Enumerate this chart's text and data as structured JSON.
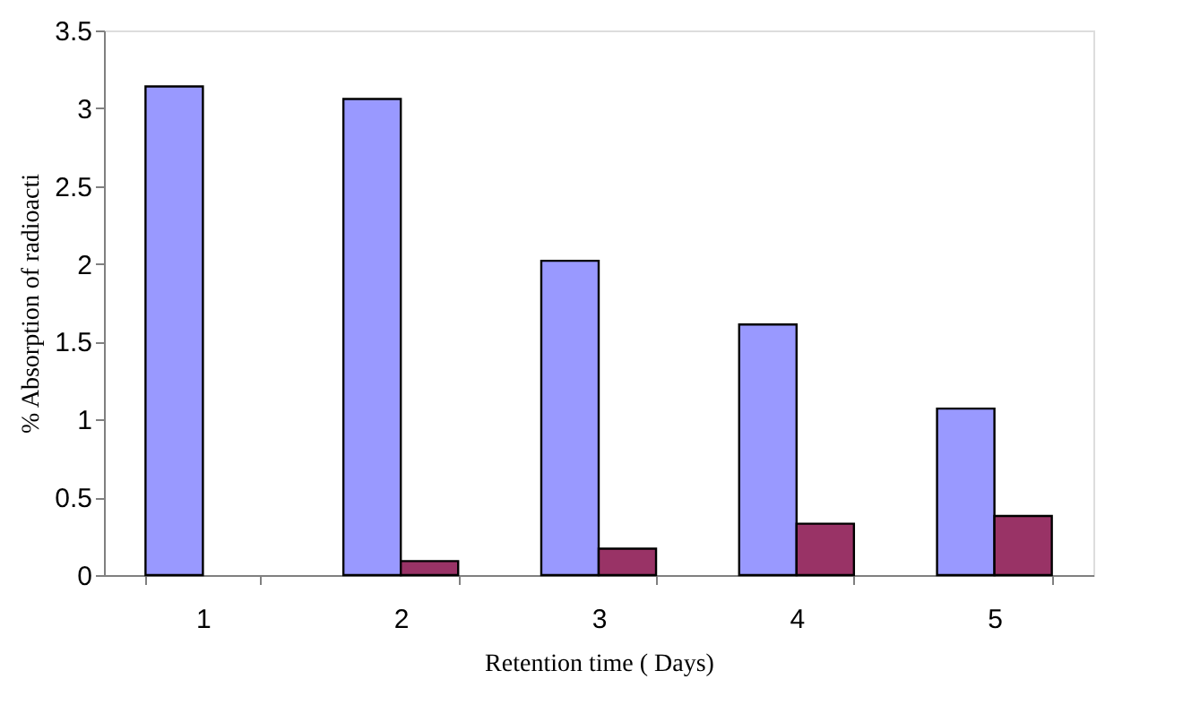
{
  "chart_data": {
    "type": "bar",
    "categories": [
      "1",
      "2",
      "3",
      "4",
      "5"
    ],
    "series": [
      {
        "color": "#9999ff",
        "values": [
          3.14,
          3.06,
          2.02,
          1.61,
          1.07
        ]
      },
      {
        "color": "#993366",
        "values": [
          null,
          0.09,
          0.17,
          0.33,
          0.38
        ]
      }
    ],
    "xlabel": "Retention time ( Days)",
    "ylabel": "% Absorption of radioacti",
    "ylim": [
      0,
      3.5
    ],
    "yticks": [
      0,
      0.5,
      1,
      1.5,
      2,
      2.5,
      3,
      3.5
    ],
    "grid": false,
    "legend": false
  }
}
